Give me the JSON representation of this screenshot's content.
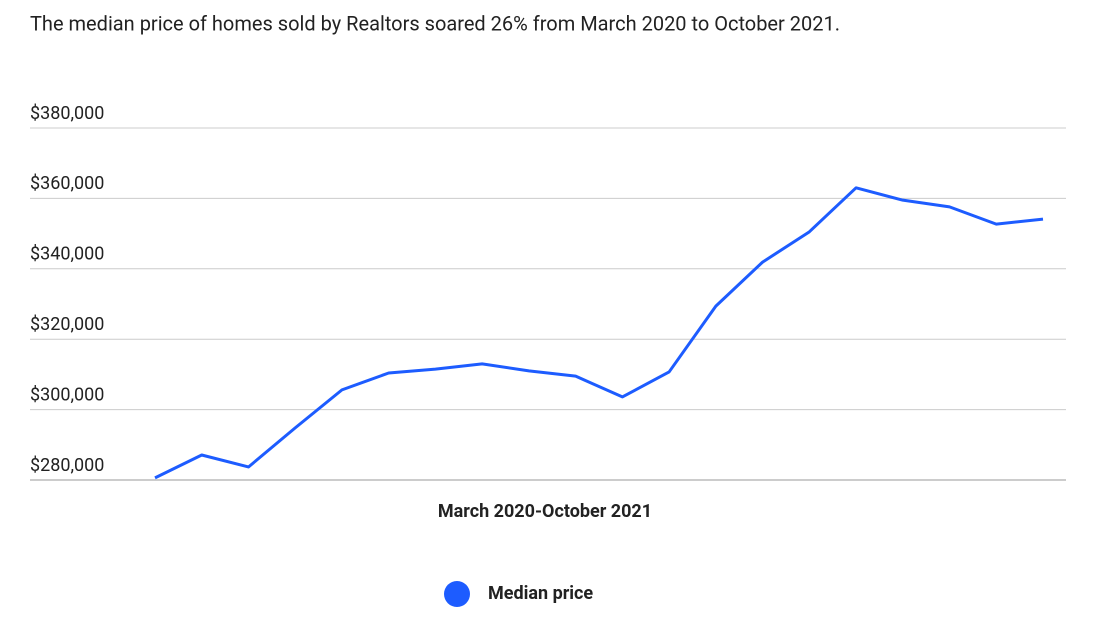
{
  "chart_data": {
    "type": "line",
    "title": "The median price of homes sold by Realtors soared 26% from March 2020 to October 2021.",
    "x_label": "March 2020-October 2021",
    "categories": [
      null,
      null,
      null,
      null,
      null,
      null,
      null,
      null,
      null,
      null,
      null,
      null,
      null,
      null,
      null,
      null,
      null,
      null,
      null,
      null
    ],
    "series": [
      {
        "name": "Median price",
        "color": "#1d5cff",
        "values": [
          280600,
          287100,
          283700,
          294800,
          305600,
          310400,
          311500,
          313000,
          311000,
          309500,
          303600,
          310700,
          329400,
          341900,
          350500,
          363000,
          359500,
          357600,
          352700,
          354100
        ]
      }
    ],
    "ylim": [
      280000,
      380000
    ],
    "yticks": [
      {
        "value": 280000,
        "label": "$280,000"
      },
      {
        "value": 300000,
        "label": "$300,000"
      },
      {
        "value": 320000,
        "label": "$320,000"
      },
      {
        "value": 340000,
        "label": "$340,000"
      },
      {
        "value": 360000,
        "label": "$360,000"
      },
      {
        "value": 380000,
        "label": "$380,000"
      }
    ],
    "grid": true,
    "legend": "bottom"
  }
}
